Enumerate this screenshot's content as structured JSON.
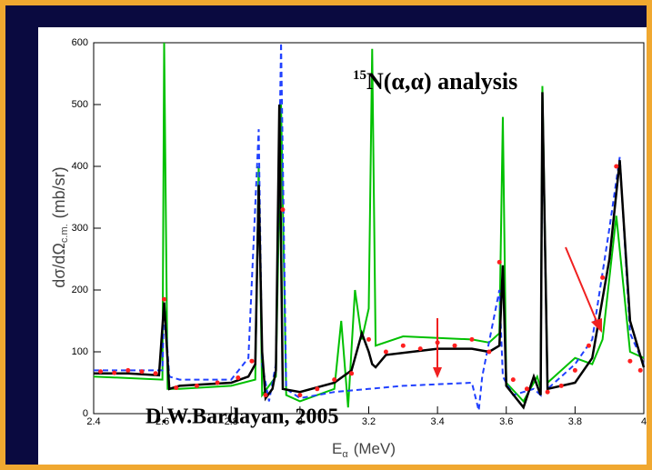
{
  "chart_data": {
    "type": "line",
    "annotation_sup": "15",
    "annotation": "N(α,α) analysis",
    "credit": "D.W.Bardayan, 2005",
    "ylabel": "dσ/dΩ",
    "ylabel_sub": "c.m.",
    "ylabel_unit": "(mb/sr)",
    "xlabel": "E",
    "xlabel_sub": "α",
    "xlabel_unit": "(MeV)",
    "xlim": [
      2.4,
      4
    ],
    "ylim": [
      0,
      600
    ],
    "xticks": [
      2.4,
      2.6,
      2.8,
      3,
      3.2,
      3.4,
      3.6,
      3.8,
      4
    ],
    "yticks": [
      0,
      100,
      200,
      300,
      400,
      500,
      600
    ],
    "series": [
      {
        "color": "#00c000",
        "style": "solid",
        "x": [
          2.4,
          2.6,
          2.605,
          2.615,
          2.65,
          2.8,
          2.87,
          2.88,
          2.89,
          2.93,
          2.945,
          2.96,
          3.0,
          3.1,
          3.12,
          3.14,
          3.16,
          3.18,
          3.2,
          3.21,
          3.22,
          3.3,
          3.5,
          3.55,
          3.58,
          3.59,
          3.6,
          3.65,
          3.69,
          3.7,
          3.705,
          3.72,
          3.8,
          3.85,
          3.88,
          3.92,
          3.96,
          4.0
        ],
        "values": [
          60,
          55,
          600,
          40,
          40,
          45,
          55,
          400,
          30,
          60,
          500,
          30,
          20,
          40,
          150,
          10,
          200,
          120,
          170,
          590,
          110,
          125,
          120,
          115,
          130,
          480,
          50,
          20,
          60,
          40,
          530,
          50,
          90,
          80,
          120,
          320,
          100,
          90
        ]
      },
      {
        "color": "#2040ff",
        "style": "dashed",
        "x": [
          2.4,
          2.6,
          2.605,
          2.62,
          2.65,
          2.8,
          2.85,
          2.88,
          2.89,
          2.91,
          2.93,
          2.945,
          2.96,
          3.0,
          3.1,
          3.2,
          3.3,
          3.5,
          3.52,
          3.53,
          3.58,
          3.59,
          3.62,
          3.68,
          3.7,
          3.705,
          3.72,
          3.8,
          3.85,
          3.9,
          3.93,
          3.96,
          4.0
        ],
        "values": [
          70,
          70,
          180,
          60,
          55,
          55,
          90,
          460,
          80,
          20,
          80,
          600,
          40,
          25,
          35,
          40,
          45,
          50,
          5,
          60,
          200,
          60,
          30,
          40,
          30,
          500,
          40,
          80,
          120,
          300,
          415,
          130,
          80
        ]
      },
      {
        "color": "#000000",
        "style": "solid",
        "x": [
          2.4,
          2.5,
          2.59,
          2.605,
          2.62,
          2.65,
          2.8,
          2.85,
          2.87,
          2.88,
          2.89,
          2.9,
          2.92,
          2.93,
          2.94,
          2.95,
          3.0,
          3.1,
          3.15,
          3.18,
          3.2,
          3.21,
          3.22,
          3.25,
          3.4,
          3.5,
          3.55,
          3.58,
          3.59,
          3.6,
          3.65,
          3.68,
          3.7,
          3.705,
          3.72,
          3.8,
          3.85,
          3.9,
          3.93,
          3.96,
          4.0
        ],
        "values": [
          65,
          65,
          62,
          180,
          40,
          45,
          50,
          60,
          80,
          370,
          100,
          25,
          40,
          70,
          500,
          40,
          35,
          50,
          70,
          130,
          100,
          80,
          75,
          95,
          105,
          105,
          100,
          110,
          240,
          45,
          10,
          60,
          30,
          520,
          40,
          50,
          90,
          250,
          410,
          150,
          75
        ]
      }
    ],
    "points": {
      "color": "#ff2020",
      "x": [
        2.42,
        2.46,
        2.5,
        2.54,
        2.58,
        2.605,
        2.64,
        2.7,
        2.76,
        2.82,
        2.86,
        2.9,
        2.95,
        3.0,
        3.05,
        3.1,
        3.15,
        3.2,
        3.25,
        3.3,
        3.35,
        3.4,
        3.45,
        3.5,
        3.55,
        3.58,
        3.62,
        3.66,
        3.72,
        3.76,
        3.8,
        3.84,
        3.88,
        3.92,
        3.96,
        3.99
      ],
      "values": [
        68,
        66,
        70,
        68,
        65,
        185,
        42,
        45,
        50,
        58,
        85,
        30,
        330,
        30,
        40,
        55,
        65,
        120,
        100,
        110,
        105,
        115,
        110,
        120,
        100,
        245,
        55,
        40,
        35,
        45,
        70,
        110,
        220,
        400,
        85,
        70
      ]
    }
  }
}
